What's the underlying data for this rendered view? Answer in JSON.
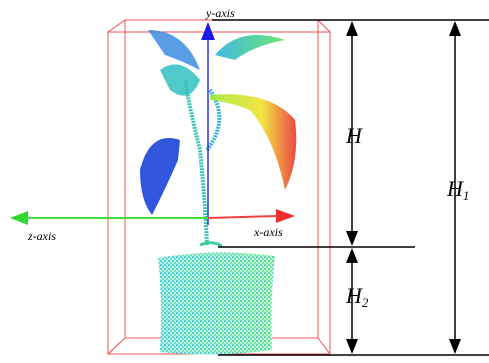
{
  "labels": {
    "y_axis": "y-axis",
    "z_axis": "z-axis",
    "x_axis": "x-axis",
    "h": "H",
    "h1": {
      "base": "H",
      "sub": "1"
    },
    "h2": {
      "base": "H",
      "sub": "2"
    }
  }
}
